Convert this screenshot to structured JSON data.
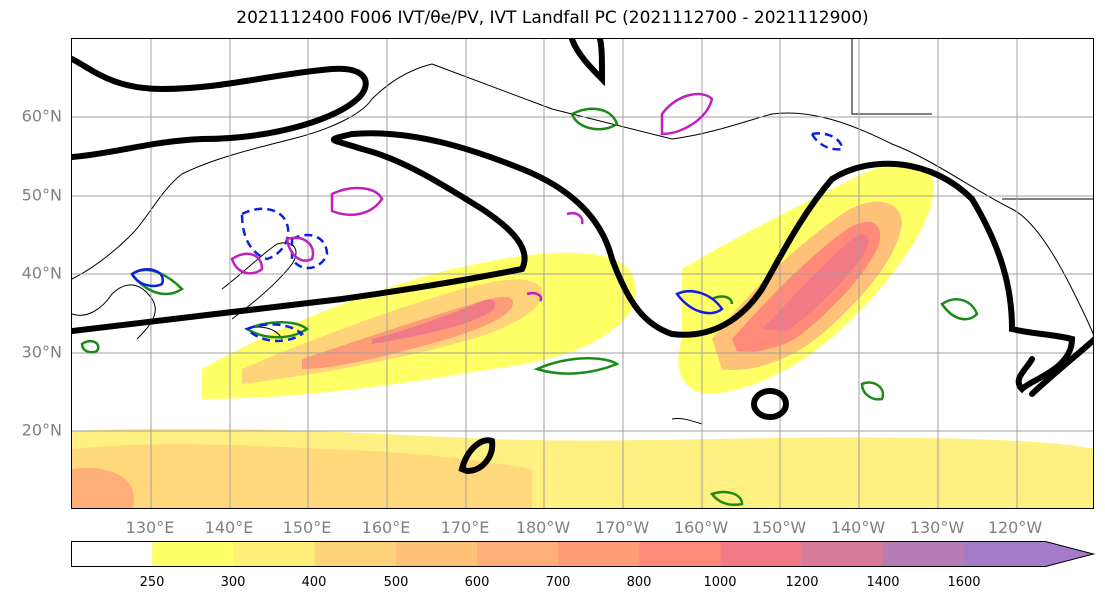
{
  "title": "2021112400 F006 IVT/θe/PV, IVT Landfall PC (2021112700 - 2021112900)",
  "lat_labels": [
    "60°N",
    "50°N",
    "40°N",
    "30°N",
    "20°N"
  ],
  "lon_labels": [
    "130°E",
    "140°E",
    "150°E",
    "160°E",
    "170°E",
    "180°W",
    "170°W",
    "160°W",
    "150°W",
    "140°W",
    "130°W",
    "120°W"
  ],
  "colorbar": {
    "levels": [
      "250",
      "300",
      "400",
      "500",
      "600",
      "700",
      "800",
      "1000",
      "1200",
      "1400",
      "1600"
    ],
    "colors": [
      "#ffffff",
      "#ffff66",
      "#fff07a",
      "#ffd37a",
      "#ffc078",
      "#ffae78",
      "#ff9c78",
      "#ff8a7a",
      "#f07a86",
      "#d87a9a",
      "#b67cb8",
      "#a27cc8"
    ]
  }
}
